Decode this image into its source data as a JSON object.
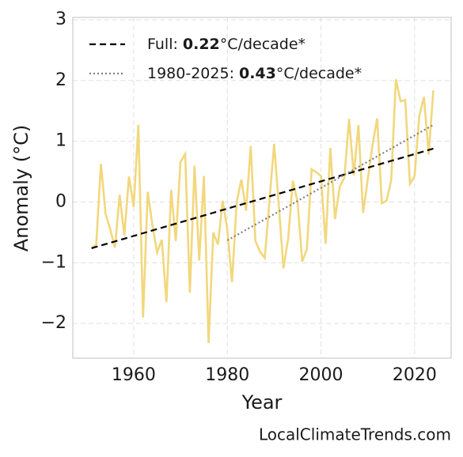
{
  "chart_data": {
    "type": "line",
    "xlabel": "Year",
    "ylabel": "Anomaly (°C)",
    "source": "LocalClimateTrends.com",
    "xlim": [
      1947,
      2027.8
    ],
    "ylim": [
      -2.57,
      3.04
    ],
    "xticks": [
      1960,
      1980,
      2000,
      2020
    ],
    "yticks": [
      {
        "value": -2,
        "label": "−2"
      },
      {
        "value": -1,
        "label": "−1"
      },
      0,
      1,
      2,
      3
    ],
    "grid": true,
    "legend": "upper left",
    "series": [
      {
        "color": "#f2d77c",
        "dash": "solid",
        "x": [
          1951,
          1952,
          1953,
          1954,
          1955,
          1956,
          1957,
          1958,
          1959,
          1960,
          1961,
          1962,
          1963,
          1964,
          1965,
          1966,
          1967,
          1968,
          1969,
          1970,
          1971,
          1972,
          1973,
          1974,
          1975,
          1976,
          1977,
          1978,
          1979,
          1980,
          1981,
          1982,
          1983,
          1984,
          1985,
          1986,
          1987,
          1988,
          1989,
          1990,
          1991,
          1992,
          1993,
          1994,
          1995,
          1996,
          1997,
          1998,
          1999,
          2000,
          2001,
          2002,
          2003,
          2004,
          2005,
          2006,
          2007,
          2008,
          2009,
          2010,
          2011,
          2012,
          2013,
          2014,
          2015,
          2016,
          2017,
          2018,
          2019,
          2020,
          2021,
          2022,
          2023,
          2024
        ],
        "values": [
          -0.76,
          -0.7,
          0.63,
          -0.2,
          -0.45,
          -0.75,
          0.12,
          -0.55,
          0.42,
          -0.08,
          1.27,
          -1.9,
          0.17,
          -0.38,
          -0.83,
          -0.62,
          -1.65,
          0.2,
          -0.64,
          0.66,
          0.79,
          -1.49,
          0.6,
          -0.96,
          0.43,
          -2.32,
          -0.5,
          -0.7,
          0.02,
          -0.45,
          -1.32,
          0,
          0.37,
          -0.14,
          0.92,
          -0.64,
          -0.82,
          -0.92,
          0.02,
          0.96,
          -0.06,
          -1.09,
          -0.6,
          0.35,
          0,
          -0.98,
          -0.77,
          0.54,
          0.49,
          0.43,
          -0.69,
          0.89,
          -0.28,
          0.25,
          0.4,
          1.37,
          0.44,
          1.27,
          -0.18,
          0.38,
          0.93,
          1.38,
          -0.02,
          0.02,
          0.36,
          2.02,
          1.66,
          1.68,
          0.3,
          0.43,
          1.42,
          1.73,
          0.78,
          1.84
        ]
      },
      {
        "name": "Full:",
        "rate_label": "0.22",
        "unit_label": "°C/decade*",
        "color": "#000000",
        "dash": "dashed",
        "x": [
          1951,
          2024
        ],
        "values": [
          -0.76,
          0.88
        ]
      },
      {
        "name": "1980-2025:",
        "rate_label": "0.43",
        "unit_label": "°C/decade*",
        "color": "#808080",
        "dash": "dotted",
        "x": [
          1980,
          2024
        ],
        "values": [
          -0.63,
          1.27
        ]
      }
    ]
  }
}
